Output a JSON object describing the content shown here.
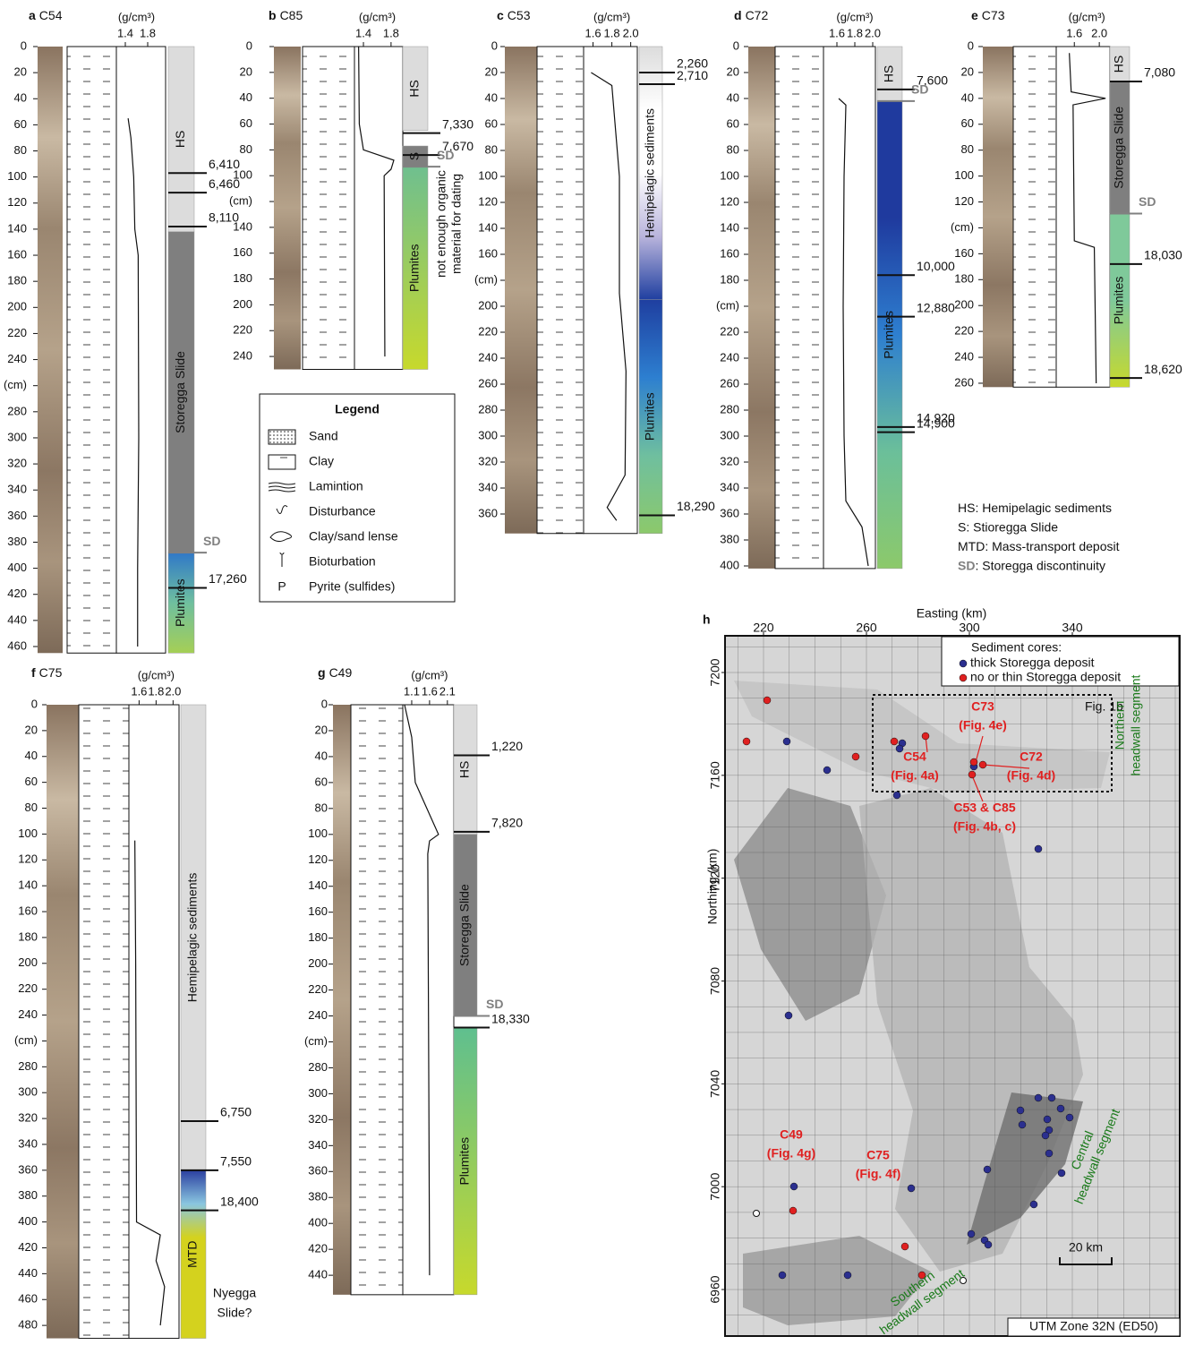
{
  "panels": [
    {
      "letter": "a",
      "core": "C54",
      "density_unit": "(g/cm³)",
      "dlim": [
        1.24,
        2.12
      ],
      "density_ticks": [
        1.4,
        1.8
      ],
      "depth_ticks": [
        0,
        20,
        40,
        60,
        80,
        100,
        120,
        140,
        160,
        180,
        200,
        220,
        240,
        {
          "value": 260,
          "label": "(cm)"
        },
        280,
        300,
        320,
        340,
        360,
        380,
        400,
        420,
        440,
        460
      ],
      "units": [
        {
          "label": "HS",
          "from": 0,
          "to": 142,
          "color": "#dcdcdc"
        },
        {
          "label": "Storegga Slide",
          "from": 142,
          "to": 388,
          "color": "#7f7f7f"
        },
        {
          "label": "Plumites",
          "from": 388,
          "to": 465,
          "color": [
            "#2f78c8",
            "#6fbf9f",
            "#a5cf55"
          ]
        }
      ],
      "ages": [
        {
          "label": "6,410",
          "depth": 97
        },
        {
          "label": "6,460",
          "depth": 112
        },
        {
          "label": "8,110",
          "depth": 138
        },
        {
          "label": "17,260",
          "depth": 415
        }
      ],
      "sd": {
        "label": "SD",
        "depth": 388
      },
      "density": {
        "depth": [
          55,
          70,
          100,
          140,
          160,
          300,
          400,
          460
        ],
        "value": [
          1.45,
          1.5,
          1.55,
          1.57,
          1.63,
          1.64,
          1.62,
          1.62
        ]
      }
    },
    {
      "letter": "b",
      "core": "C85",
      "density_unit": "(g/cm³)",
      "dlim": [
        1.27,
        1.97
      ],
      "density_ticks": [
        1.4,
        1.8
      ],
      "depth_ticks": [
        0,
        20,
        40,
        60,
        80,
        100,
        {
          "value": 120,
          "label": "(cm)"
        },
        140,
        160,
        180,
        200,
        220,
        240
      ],
      "units": [
        {
          "label": "HS",
          "from": 0,
          "to": 65,
          "color": "#dcdcdc"
        },
        {
          "label": "S",
          "from": 77,
          "to": 93,
          "color": "#7f7f7f"
        },
        {
          "label": "Plumites",
          "from": 93,
          "to": 250,
          "color": [
            "#6fbf8f",
            "#c7d92c"
          ]
        }
      ],
      "ages": [
        {
          "label": "7,330",
          "depth": 67
        },
        {
          "label": "7,670",
          "depth": 84
        }
      ],
      "sd": {
        "label": "SD",
        "depth": 93
      },
      "notes": [
        "not enough organic",
        "material for dating"
      ],
      "density": {
        "depth": [
          0,
          60,
          80,
          88,
          95,
          100,
          240
        ],
        "value": [
          1.33,
          1.34,
          1.4,
          1.84,
          1.8,
          1.7,
          1.71
        ]
      }
    },
    {
      "letter": "c",
      "core": "C53",
      "density_unit": "(g/cm³)",
      "dlim": [
        1.5,
        2.07
      ],
      "density_ticks": [
        1.6,
        1.8,
        {
          "value": 2,
          "label": "2.0"
        }
      ],
      "depth_ticks": [
        0,
        20,
        40,
        60,
        80,
        100,
        120,
        140,
        160,
        {
          "value": 180,
          "label": "(cm)"
        },
        200,
        220,
        240,
        260,
        280,
        300,
        320,
        340,
        360
      ],
      "units": [
        {
          "label": "Hemipelagic sediments",
          "from": 0,
          "to": 195,
          "color": [
            "#dcdcdc",
            "#ffffff",
            "#ffffff",
            "#b9b4dc",
            "#1f3fa0"
          ]
        },
        {
          "label": "Plumites",
          "from": 195,
          "to": 375,
          "color": [
            "#1f3fa0",
            "#2d7fd0",
            "#6fbf9f",
            "#8cc96b"
          ]
        }
      ],
      "ages": [
        {
          "label": "2,260",
          "depth": 20
        },
        {
          "label": "2,710",
          "depth": 29
        },
        {
          "label": "18,290",
          "depth": 361
        }
      ],
      "density": {
        "depth": [
          20,
          30,
          100,
          190,
          250,
          330,
          355,
          365
        ],
        "value": [
          1.58,
          1.8,
          1.88,
          1.88,
          1.95,
          1.94,
          1.75,
          1.85
        ]
      }
    },
    {
      "letter": "d",
      "core": "C72",
      "density_unit": "(g/cm³)",
      "dlim": [
        1.45,
        2.03
      ],
      "density_ticks": [
        1.6,
        1.8,
        {
          "value": 2,
          "label": "2.0"
        }
      ],
      "depth_ticks": [
        0,
        20,
        40,
        60,
        80,
        100,
        120,
        140,
        160,
        180,
        {
          "value": 200,
          "label": "(cm)"
        },
        220,
        240,
        260,
        280,
        300,
        320,
        340,
        360,
        380,
        400
      ],
      "units": [
        {
          "label": "HS",
          "from": 0,
          "to": 42,
          "color": "#dcdcdc"
        },
        {
          "label": "Plumites",
          "from": 42,
          "to": 402,
          "color": [
            "#1f3a9e",
            "#1f3a9e",
            "#2e7fd0",
            "#6bbf9a",
            "#8cc96b"
          ]
        }
      ],
      "ages": [
        {
          "label": "7,600",
          "depth": 33
        },
        {
          "label": "10,000",
          "depth": 176
        },
        {
          "label": "12,880",
          "depth": 208
        },
        {
          "label": "14,920",
          "depth": 293
        },
        {
          "label": "14,900",
          "depth": 297
        }
      ],
      "sd": {
        "label": "SD",
        "depth": 42
      },
      "density": {
        "depth": [
          40,
          45,
          100,
          200,
          300,
          350,
          370,
          400
        ],
        "value": [
          1.62,
          1.7,
          1.68,
          1.67,
          1.68,
          1.7,
          1.88,
          1.95
        ]
      }
    },
    {
      "letter": "e",
      "core": "C73",
      "density_unit": "(g/cm³)",
      "dlim": [
        1.31,
        2.17
      ],
      "density_ticks": [
        1.6,
        {
          "value": 2,
          "label": "2.0"
        }
      ],
      "depth_ticks": [
        0,
        20,
        40,
        60,
        80,
        100,
        120,
        {
          "value": 140,
          "label": "(cm)"
        },
        160,
        180,
        200,
        220,
        240,
        260
      ],
      "units": [
        {
          "label": "HS",
          "from": 0,
          "to": 27,
          "color": "#dcdcdc"
        },
        {
          "label": "Storegga Slide",
          "from": 27,
          "to": 129,
          "color": "#7f7f7f"
        },
        {
          "label": "Plumites",
          "from": 129,
          "to": 263,
          "color": [
            "#7fc99a",
            "#7fc99a",
            "#c7d92c"
          ]
        }
      ],
      "ages": [
        {
          "label": "7,080",
          "depth": 27
        },
        {
          "label": "18,030",
          "depth": 168
        },
        {
          "label": "18,620",
          "depth": 256
        }
      ],
      "sd": {
        "label": "SD",
        "depth": 129
      },
      "density": {
        "depth": [
          5,
          35,
          40,
          45,
          150,
          155,
          260
        ],
        "value": [
          1.52,
          1.55,
          2.1,
          1.58,
          1.6,
          1.92,
          1.95
        ]
      }
    },
    {
      "letter": "f",
      "core": "C75",
      "density_unit": "(g/cm³)",
      "dlim": [
        1.48,
        2.07
      ],
      "density_ticks": [
        1.6,
        1.8,
        {
          "value": 2,
          "label": "2.0"
        }
      ],
      "depth_ticks": [
        0,
        20,
        40,
        60,
        80,
        100,
        120,
        140,
        160,
        180,
        200,
        220,
        240,
        {
          "value": 260,
          "label": "(cm)"
        },
        280,
        300,
        320,
        340,
        360,
        380,
        400,
        420,
        440,
        460,
        480
      ],
      "units": [
        {
          "label": "Hemipelagic sediments",
          "from": 0,
          "to": 360,
          "color": "#dcdcdc"
        },
        {
          "label": "MTD",
          "from": 360,
          "to": 490,
          "color": [
            "#2b3fa0",
            "#8ac6e0",
            "#d4d21e",
            "#d4d21e",
            "#d4d21e",
            "#d4d21e"
          ]
        }
      ],
      "ages": [
        {
          "label": "6,750",
          "depth": 322
        },
        {
          "label": "7,550",
          "depth": 360
        },
        {
          "label": "18,400",
          "depth": 391
        }
      ],
      "notes": [
        "Nyegga",
        "Slide?"
      ],
      "density": {
        "depth": [
          105,
          200,
          400,
          410,
          430,
          450,
          480
        ],
        "value": [
          1.55,
          1.56,
          1.57,
          1.85,
          1.8,
          1.9,
          1.85
        ]
      }
    },
    {
      "letter": "g",
      "core": "C49",
      "density_unit": "(g/cm³)",
      "dlim": [
        0.85,
        2.28
      ],
      "density_ticks": [
        1.1,
        1.6,
        2.1
      ],
      "depth_ticks": [
        0,
        20,
        40,
        60,
        80,
        100,
        120,
        140,
        160,
        180,
        200,
        220,
        240,
        {
          "value": 260,
          "label": "(cm)"
        },
        280,
        300,
        320,
        340,
        360,
        380,
        400,
        420,
        440
      ],
      "units": [
        {
          "label": "HS",
          "from": 0,
          "to": 100,
          "color": "#dcdcdc"
        },
        {
          "label": "Storegga Slide",
          "from": 100,
          "to": 240,
          "color": "#7f7f7f"
        },
        {
          "label": "Plumites",
          "from": 249,
          "to": 455,
          "color": [
            "#5fbf8f",
            "#c7d92c"
          ]
        }
      ],
      "ages": [
        {
          "label": "1,220",
          "depth": 39
        },
        {
          "label": "7,820",
          "depth": 98
        },
        {
          "label": "18,330",
          "depth": 249
        }
      ],
      "sd": {
        "label": "SD",
        "depth": 240
      },
      "density": {
        "depth": [
          0,
          25,
          60,
          100,
          105,
          115,
          300,
          440
        ],
        "value": [
          0.9,
          1.1,
          1.2,
          1.85,
          1.6,
          1.55,
          1.58,
          1.6
        ]
      }
    }
  ],
  "legend": {
    "title": "Legend",
    "items": [
      {
        "label": "Sand"
      },
      {
        "label": "Clay"
      },
      {
        "label": "Lamintion"
      },
      {
        "label": "Disturbance"
      },
      {
        "label": "Clay/sand lense"
      },
      {
        "label": "Bioturbation"
      },
      {
        "label": "Pyrite (sulfides)",
        "symbol": "P"
      }
    ]
  },
  "abbreviations": [
    {
      "abbr": "HS",
      "text": ": Hemipelagic sediments"
    },
    {
      "abbr": "S",
      "text": ": Stioregga Slide"
    },
    {
      "abbr": "MTD",
      "text": ": Mass-transport deposit"
    },
    {
      "abbr": "SD",
      "text": ": Storegga discontinuity"
    }
  ],
  "map": {
    "letter": "h",
    "x_label": "Easting (km)",
    "y_label": "Northing (km)",
    "xticks": [
      220,
      260,
      300,
      340
    ],
    "yticks": [
      7200,
      7160,
      7120,
      7080,
      7040,
      7000,
      6960
    ],
    "legend_title": "Sediment cores:",
    "legend": [
      {
        "label": "thick Storegga deposit",
        "color": "#2b2f8f"
      },
      {
        "label": "no or thin Storegga deposit",
        "color": "#e02020"
      }
    ],
    "box_label": "Fig. 1b",
    "core_labels": [
      [
        "C73",
        "(Fig. 4e)"
      ],
      [
        "C54",
        "(Fig. 4a)"
      ],
      [
        "C72",
        "(Fig. 4d)"
      ],
      [
        "C53 & C85",
        "(Fig. 4b, c)"
      ],
      [
        "C49",
        "(Fig. 4g)"
      ],
      [
        "C75",
        "(Fig. 4f)"
      ]
    ],
    "segments": [
      [
        "Northern",
        "headwall segment"
      ],
      [
        "Central",
        "headwall segment"
      ],
      [
        "Southern",
        "headwall segment"
      ]
    ],
    "scale": "20 km",
    "projection": "UTM Zone 32N (ED50)"
  }
}
